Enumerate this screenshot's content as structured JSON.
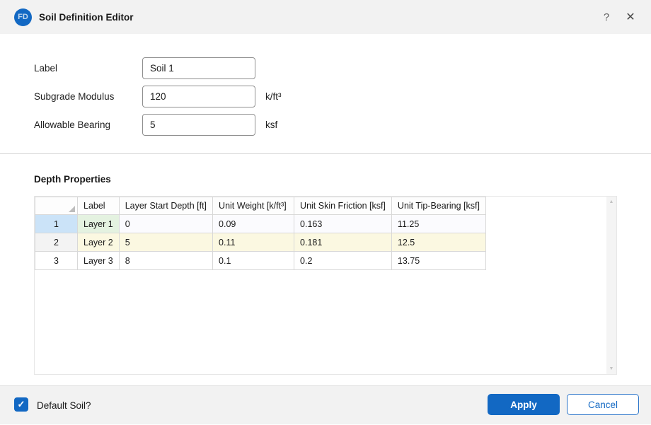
{
  "window": {
    "title": "Soil Definition Editor",
    "logo_text": "FD"
  },
  "icons": {
    "help": "?",
    "close": "✕",
    "checkmark": "✓",
    "scroll_up": "▲",
    "scroll_down": "▼"
  },
  "form": {
    "fields": [
      {
        "label": "Label",
        "value": "Soil 1",
        "unit": ""
      },
      {
        "label": "Subgrade Modulus",
        "value": "120",
        "unit": "k/ft³"
      },
      {
        "label": "Allowable Bearing",
        "value": "5",
        "unit": "ksf"
      }
    ]
  },
  "grid": {
    "section_title": "Depth Properties",
    "headers": {
      "corner": "",
      "label": "Label",
      "start_depth": "Layer Start Depth [ft]",
      "unit_weight": "Unit Weight [k/ft³]",
      "skin_friction": "Unit Skin Friction [ksf]",
      "tip_bearing": "Unit Tip-Bearing [ksf]"
    },
    "rows": [
      {
        "num": "1",
        "label": "Layer 1",
        "start_depth": "0",
        "unit_weight": "0.09",
        "skin_friction": "0.163",
        "tip_bearing": "11.25"
      },
      {
        "num": "2",
        "label": "Layer 2",
        "start_depth": "5",
        "unit_weight": "0.11",
        "skin_friction": "0.181",
        "tip_bearing": "12.5"
      },
      {
        "num": "3",
        "label": "Layer 3",
        "start_depth": "8",
        "unit_weight": "0.1",
        "skin_friction": "0.2",
        "tip_bearing": "13.75"
      }
    ]
  },
  "footer": {
    "checkbox_label": "Default Soil?",
    "checkbox_checked": true,
    "apply_label": "Apply",
    "cancel_label": "Cancel"
  },
  "colors": {
    "accent": "#1268c3",
    "titlebar_bg": "#f2f2f2",
    "footer_bg": "#f2f2f2",
    "selected_header_bg": "#cbe3f8",
    "row1_label_bg": "#e4f2e0",
    "row2_bg": "#fbf8e1",
    "grid_border": "#d8d8d8"
  }
}
